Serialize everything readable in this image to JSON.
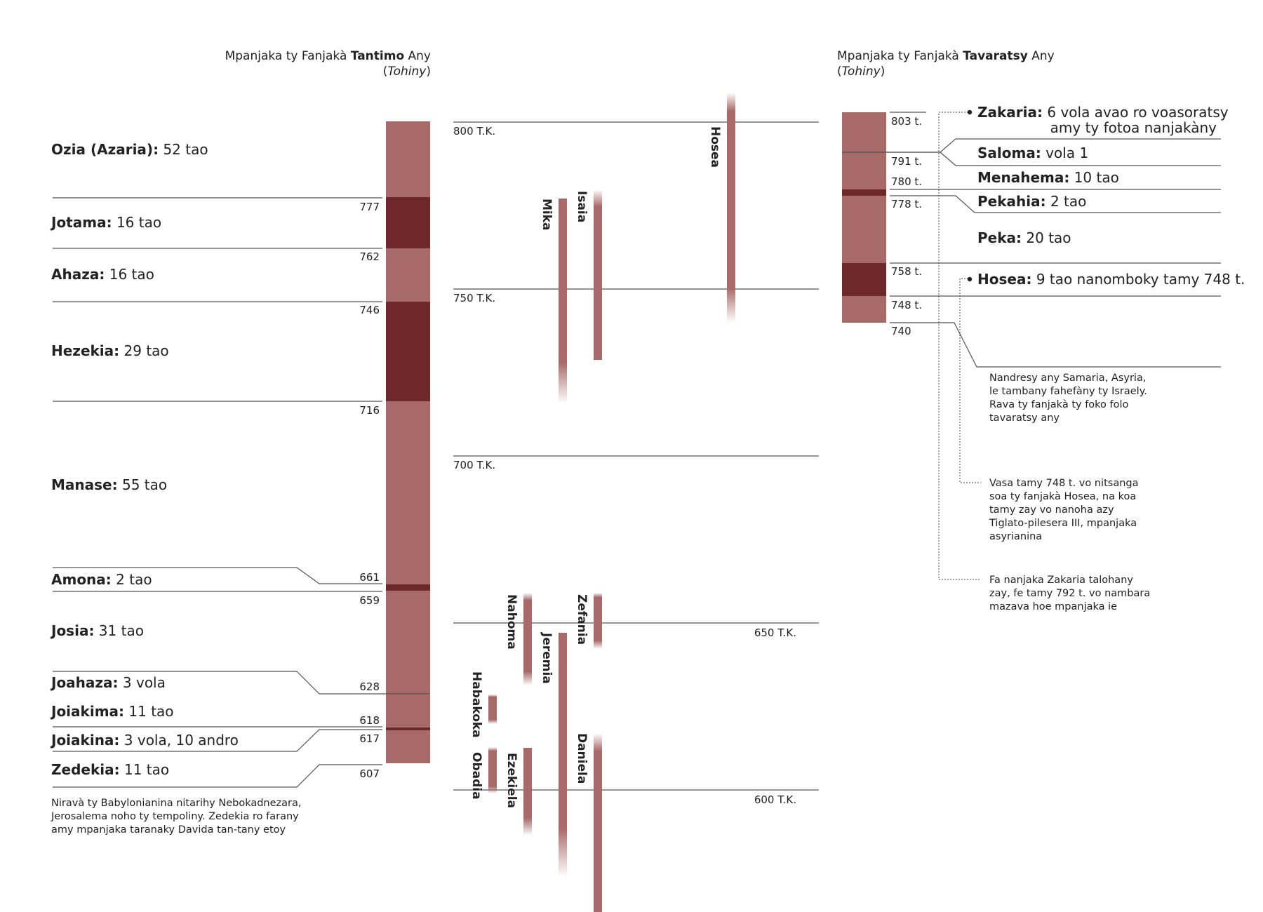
{
  "headers": {
    "south": {
      "prefix": "Mpanjaka ty Fanjakà ",
      "bold": "Tantimo",
      "suffix": " Any",
      "sub": "Tohiny"
    },
    "north": {
      "prefix": "Mpanjaka ty Fanjakà ",
      "bold": "Tavaratsy",
      "suffix": " Any",
      "sub": "Tohiny"
    }
  },
  "colors": {
    "light": "#a86a68",
    "dark": "#6e282a",
    "line": "#555555",
    "text": "#222222"
  },
  "south_kings": [
    {
      "name": "Ozia (Azaria):",
      "reign": "52 tao"
    },
    {
      "name": "Jotama:",
      "reign": "16 tao"
    },
    {
      "name": "Ahaza:",
      "reign": "16 tao"
    },
    {
      "name": "Hezekia:",
      "reign": "29 tao"
    },
    {
      "name": "Manase:",
      "reign": "55 tao"
    },
    {
      "name": "Amona:",
      "reign": "2 tao"
    },
    {
      "name": "Josia:",
      "reign": "31 tao"
    },
    {
      "name": "Joahaza:",
      "reign": "3 vola"
    },
    {
      "name": "Joiakima:",
      "reign": "11 tao"
    },
    {
      "name": "Joiakina:",
      "reign": "3 vola, 10 andro"
    },
    {
      "name": "Zedekia:",
      "reign": "11 tao"
    }
  ],
  "south_years": [
    "777",
    "762",
    "746",
    "716",
    "661",
    "659",
    "628",
    "618",
    "617",
    "607"
  ],
  "south_note": [
    "Niravà ty Babylonianina nitarihy Nebokadnezara,",
    "Jerosalema noho ty tempoliny. Zedekia ro farany",
    "amy mpanjaka taranaky Davida tan-tany etoy"
  ],
  "timeline_ticks": [
    "800 T.K.",
    "750 T.K.",
    "700 T.K.",
    "650 T.K.",
    "600 T.K."
  ],
  "prophets": [
    "Hosea",
    "Mika",
    "Isaia",
    "Nahoma",
    "Zefania",
    "Jeremia",
    "Habakoka",
    "Obadia",
    "Ezekiela",
    "Daniela"
  ],
  "north_years": [
    "803 t.",
    "791 t.",
    "780 t.",
    "778 t.",
    "758 t.",
    "748 t.",
    "740"
  ],
  "north_kings": [
    {
      "name": "Zakaria:",
      "reign": "6 vola avao ro voasoratsy",
      "reign2": "amy ty fotoa nanjakàny"
    },
    {
      "name": "Saloma:",
      "reign": "vola 1"
    },
    {
      "name": "Menahema:",
      "reign": "10 tao"
    },
    {
      "name": "Pekahia:",
      "reign": "2 tao"
    },
    {
      "name": "Peka:",
      "reign": "20 tao"
    },
    {
      "name": "Hosea:",
      "reign": "9 tao nanomboky tamy 748 t."
    }
  ],
  "north_notes": {
    "samaria": [
      "Nandresy any Samaria, Asyria,",
      "le tambany fahefàny ty Israely.",
      "Rava ty fanjakà ty foko folo",
      "tavaratsy any"
    ],
    "hosea": [
      "Vasa tamy 748 t. vo nitsanga",
      "soa ty fanjakà Hosea, na koa",
      "tamy zay vo nanoha azy",
      "Tiglato-pilesera III, mpanjaka",
      "asyrianina"
    ],
    "zakaria": [
      "Fa nanjaka Zakaria talohany",
      "zay, fe tamy 792 t. vo nambara",
      "mazava hoe mpanjaka ie"
    ]
  }
}
